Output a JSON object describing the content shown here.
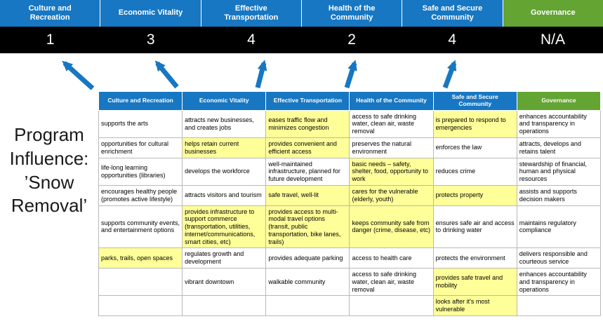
{
  "slide": {
    "title": "Program Influence: ’Snow Removal’"
  },
  "colors": {
    "header_blue": "#1777C2",
    "header_green": "#64A433",
    "highlight_yellow": "#FFFF99",
    "score_band": "#000000",
    "arrow_blue": "#1777C2",
    "title_text": "#1A1A1A"
  },
  "summary": {
    "headers": [
      "Culture and Recreation",
      "Economic Vitality",
      "Effective Transportation",
      "Health of the Community",
      "Safe and Secure Community",
      "Governance"
    ],
    "scores": [
      "1",
      "3",
      "4",
      "2",
      "4",
      "N/A"
    ]
  },
  "table": {
    "headers": [
      "Culture and Recreation",
      "Economic Vitality",
      "Effective Transportation",
      "Health of the Community",
      "Safe and Secure Community",
      "Governance"
    ],
    "rows": [
      [
        {
          "text": "supports the arts",
          "highlight": false
        },
        {
          "text": "attracts new businesses, and creates jobs",
          "highlight": false
        },
        {
          "text": "eases traffic flow and minimizes congestion",
          "highlight": true
        },
        {
          "text": "access to safe drinking water, clean air, waste removal",
          "highlight": false
        },
        {
          "text": "is prepared to respond to emergencies",
          "highlight": true
        },
        {
          "text": "enhances accountability and transparency in operations",
          "highlight": false
        }
      ],
      [
        {
          "text": "opportunities for cultural enrichment",
          "highlight": false
        },
        {
          "text": "helps retain current businesses",
          "highlight": true
        },
        {
          "text": "provides convenient and efficient access",
          "highlight": true
        },
        {
          "text": "preserves the natural environment",
          "highlight": false
        },
        {
          "text": "enforces the law",
          "highlight": false
        },
        {
          "text": "attracts, develops and retains talent",
          "highlight": false
        }
      ],
      [
        {
          "text": "life-long learning opportunities (libraries)",
          "highlight": false
        },
        {
          "text": "develops the workforce",
          "highlight": false
        },
        {
          "text": "well-maintained infrastructure, planned for future development",
          "highlight": false
        },
        {
          "text": "basic needs – safety, shelter, food, opportunity to work",
          "highlight": true
        },
        {
          "text": "reduces crime",
          "highlight": false
        },
        {
          "text": "stewardship of financial, human and physical resources",
          "highlight": false
        }
      ],
      [
        {
          "text": "encourages healthy people (promotes active lifestyle)",
          "highlight": false
        },
        {
          "text": "attracts visitors and tourism",
          "highlight": false
        },
        {
          "text": "safe travel, well-lit",
          "highlight": true
        },
        {
          "text": "cares for the vulnerable (elderly, youth)",
          "highlight": true
        },
        {
          "text": "protects property",
          "highlight": true
        },
        {
          "text": "assists and supports decision makers",
          "highlight": false
        }
      ],
      [
        {
          "text": "supports community events, and entertainment options",
          "highlight": false
        },
        {
          "text": "provides infrastructure to support commerce (transportation, utilities, internet/communications, smart cities, etc)",
          "highlight": true
        },
        {
          "text": "provides access to multi-modal travel options (transit, public transportation, bike lanes, trails)",
          "highlight": true
        },
        {
          "text": "keeps community safe from danger (crime, disease, etc)",
          "highlight": true
        },
        {
          "text": "ensures safe air and access to drinking water",
          "highlight": false
        },
        {
          "text": "maintains regulatory compliance",
          "highlight": false
        }
      ],
      [
        {
          "text": "parks, trails, open spaces",
          "highlight": true
        },
        {
          "text": "regulates growth and development",
          "highlight": false
        },
        {
          "text": "provides adequate parking",
          "highlight": false
        },
        {
          "text": "access to health care",
          "highlight": false
        },
        {
          "text": "protects the environment",
          "highlight": false
        },
        {
          "text": "delivers responsible and courteous service",
          "highlight": false
        }
      ],
      [
        {
          "text": "",
          "highlight": false
        },
        {
          "text": "vibrant downtown",
          "highlight": false
        },
        {
          "text": "walkable community",
          "highlight": false
        },
        {
          "text": "access to safe drinking water, clean air, waste removal",
          "highlight": false
        },
        {
          "text": "provides safe travel and mobility",
          "highlight": true
        },
        {
          "text": "enhances accountability and transparency in operations",
          "highlight": false
        }
      ],
      [
        {
          "text": "",
          "highlight": false
        },
        {
          "text": "",
          "highlight": false
        },
        {
          "text": "",
          "highlight": false
        },
        {
          "text": "",
          "highlight": false
        },
        {
          "text": "looks after it's most vulnerable",
          "highlight": true
        },
        {
          "text": "",
          "highlight": false
        }
      ]
    ]
  }
}
